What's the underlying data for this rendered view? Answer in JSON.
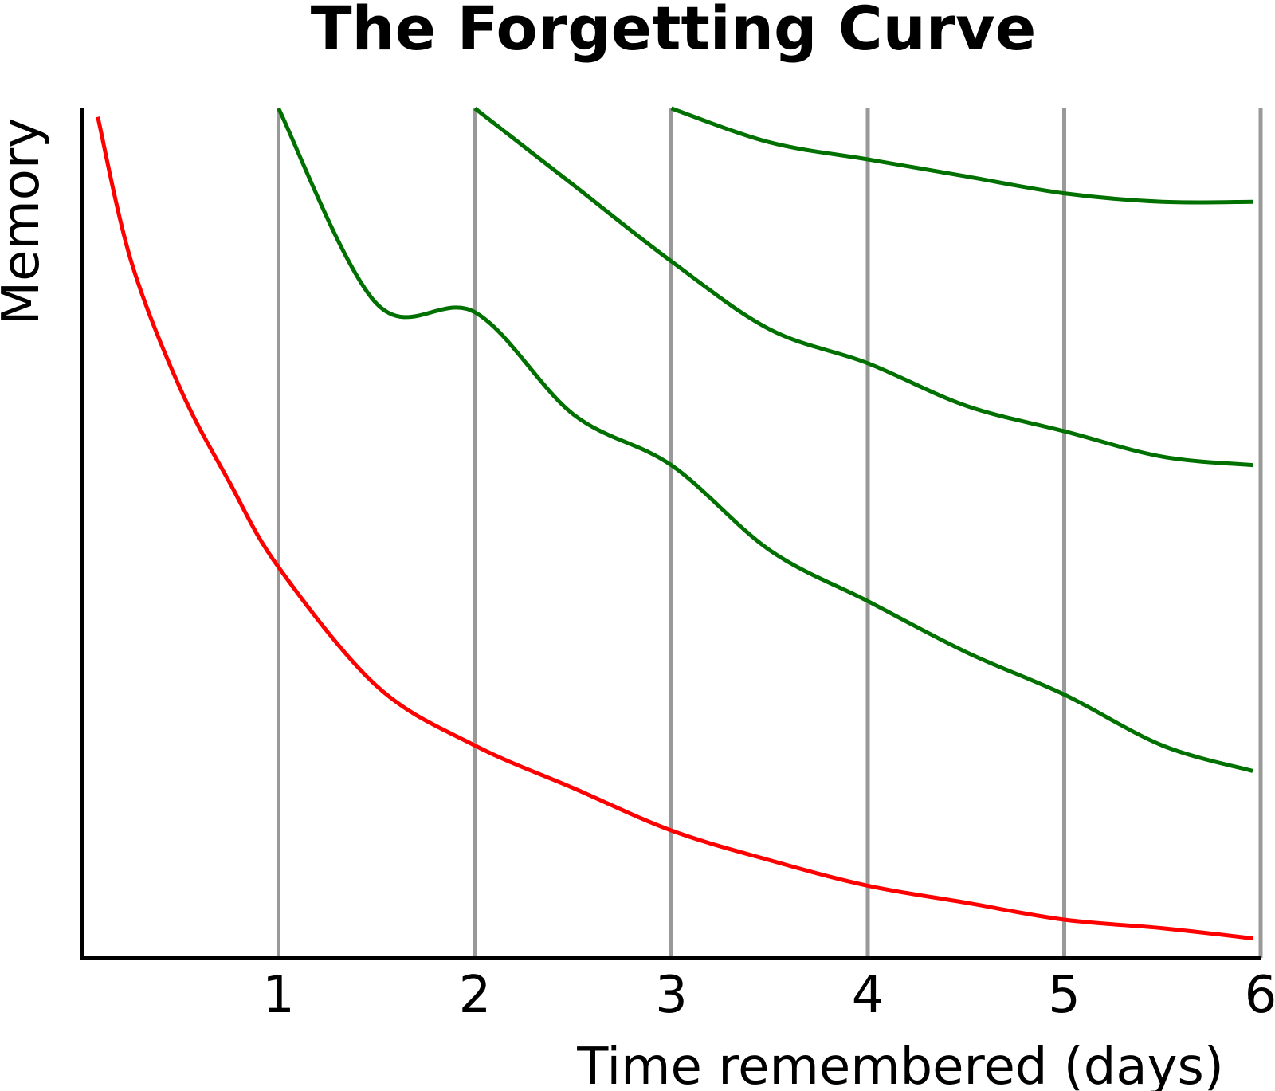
{
  "chart_data": {
    "type": "line",
    "title": "The Forgetting Curve",
    "xlabel": "Time remembered (days)",
    "ylabel": "Memory",
    "xlim": [
      0,
      6
    ],
    "ylim": [
      0,
      100
    ],
    "x_ticks": [
      "1",
      "2",
      "3",
      "4",
      "5",
      "6"
    ],
    "grid": "vertical lines at each day",
    "colors": {
      "forgetting": "#ff0000",
      "review": "#007000",
      "grid": "#999999",
      "axis": "#000000"
    },
    "series": [
      {
        "color": "#ff0000",
        "x": [
          0.08,
          0.25,
          0.5,
          0.75,
          1,
          1.5,
          2,
          2.5,
          3,
          3.5,
          4,
          4.5,
          5,
          5.5,
          5.96
        ],
        "y": [
          99,
          82,
          67,
          56,
          46,
          32,
          25,
          20,
          15,
          11.5,
          8.5,
          6.5,
          4.5,
          3.5,
          2.3
        ]
      },
      {
        "color": "#007000",
        "x": [
          1,
          1.5,
          2,
          2.5,
          3,
          3.5,
          4,
          4.5,
          5,
          5.5,
          5.96
        ],
        "y": [
          100,
          77,
          76,
          64,
          58,
          48,
          42,
          36,
          31,
          25,
          22
        ]
      },
      {
        "color": "#007000",
        "x": [
          2,
          2.5,
          3,
          3.5,
          4,
          4.5,
          5,
          5.5,
          5.96
        ],
        "y": [
          100,
          91,
          82,
          74,
          70,
          65,
          62,
          59,
          58
        ]
      },
      {
        "color": "#007000",
        "x": [
          3,
          3.5,
          4,
          4.5,
          5,
          5.5,
          5.96
        ],
        "y": [
          100,
          96,
          94,
          92,
          90,
          89,
          89
        ]
      }
    ]
  }
}
